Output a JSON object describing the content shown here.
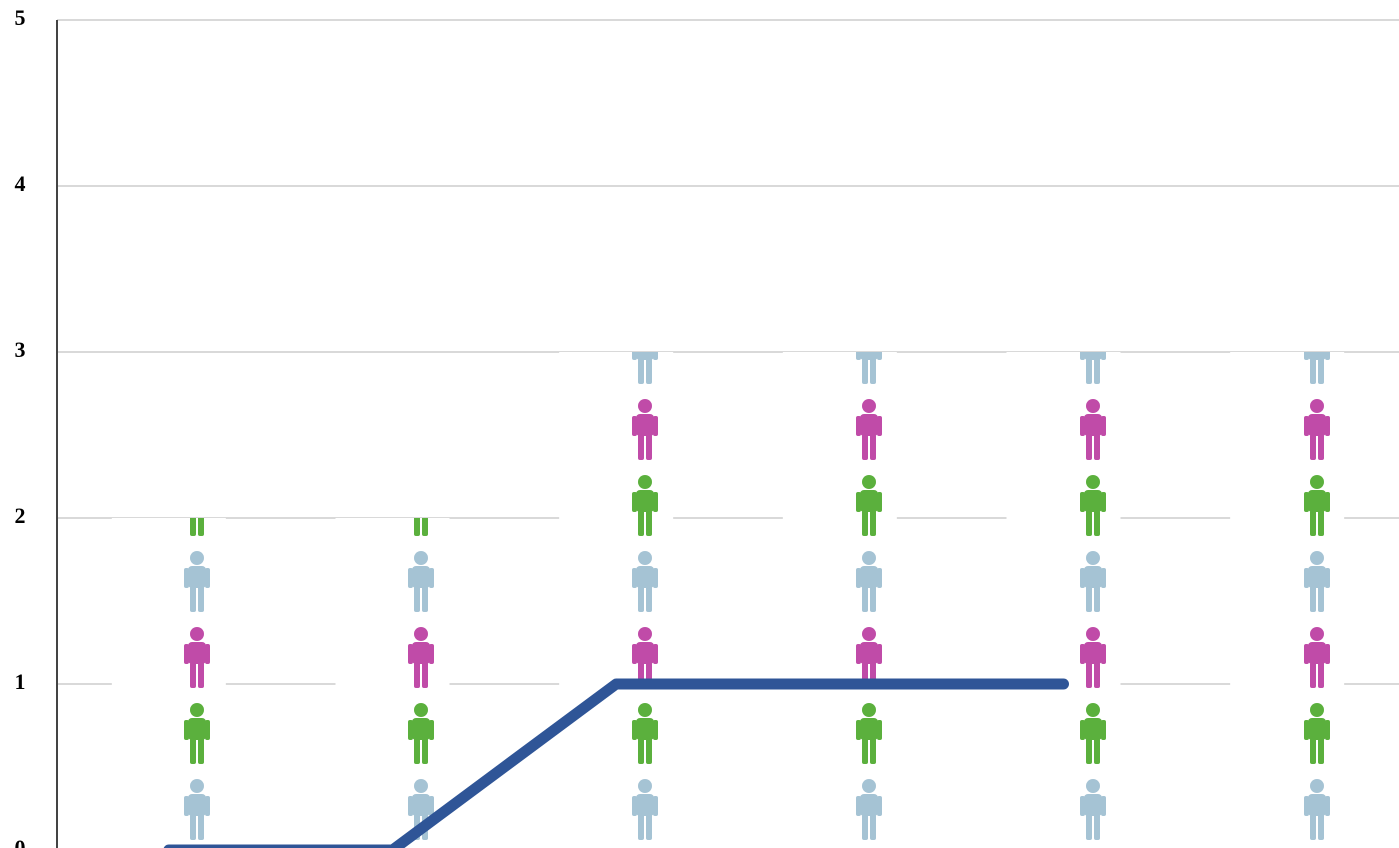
{
  "chart_data": {
    "type": "bar",
    "categories": [
      null,
      null,
      null,
      null,
      null,
      null
    ],
    "series": [
      {
        "type": "bar",
        "values": [
          2,
          2,
          3,
          3,
          3,
          3
        ]
      },
      {
        "type": "line",
        "color": "#2f5597",
        "values": [
          0,
          0,
          1,
          1,
          1,
          null
        ]
      }
    ],
    "ylim": [
      0,
      5
    ],
    "yticks": [
      0,
      1,
      2,
      3,
      4,
      5
    ],
    "grid": true
  }
}
